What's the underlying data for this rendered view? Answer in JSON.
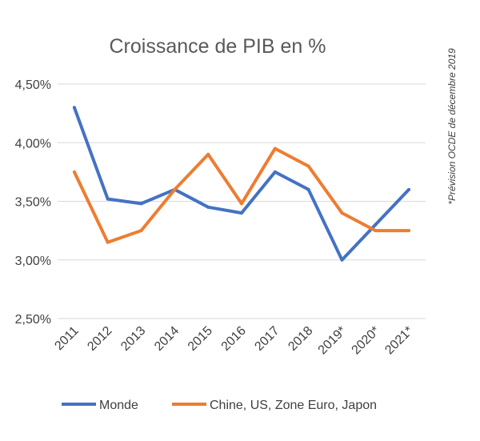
{
  "chart_data": {
    "type": "line",
    "title": "Croissance de PIB en %",
    "categories": [
      "2011",
      "2012",
      "2013",
      "2014",
      "2015",
      "2016",
      "2017",
      "2018",
      "2019*",
      "2020*",
      "2021*"
    ],
    "y_ticks": [
      "2,50%",
      "3,00%",
      "3,50%",
      "4,00%",
      "4,50%"
    ],
    "ylim": [
      2.5,
      4.5
    ],
    "grid": true,
    "legend_position": "bottom",
    "note": "*Prévision OCDE de décembre 2019",
    "series": [
      {
        "name": "Monde",
        "color": "#4472c4",
        "values": [
          4.3,
          3.52,
          3.48,
          3.6,
          3.45,
          3.4,
          3.75,
          3.6,
          3.0,
          3.3,
          3.6
        ]
      },
      {
        "name": "Chine, US, Zone Euro, Japon",
        "color": "#ed7d31",
        "values": [
          3.75,
          3.15,
          3.25,
          3.6,
          3.9,
          3.48,
          3.95,
          3.8,
          3.4,
          3.25,
          3.25
        ]
      }
    ]
  }
}
